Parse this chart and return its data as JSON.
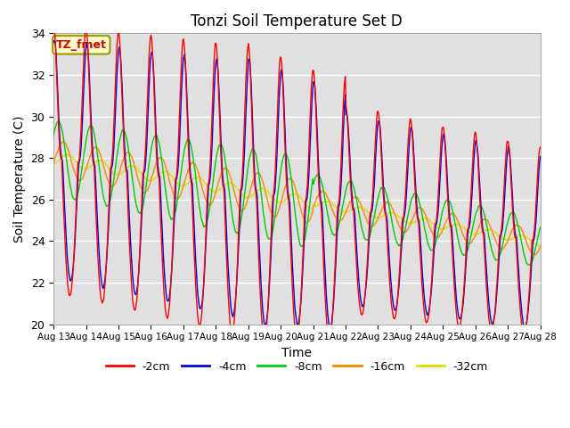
{
  "title": "Tonzi Soil Temperature Set D",
  "xlabel": "Time",
  "ylabel": "Soil Temperature (C)",
  "ylim": [
    20,
    34
  ],
  "xlim_days": [
    0,
    15
  ],
  "series_labels": [
    "-2cm",
    "-4cm",
    "-8cm",
    "-16cm",
    "-32cm"
  ],
  "series_colors": [
    "#ff0000",
    "#0000dd",
    "#00cc00",
    "#ff8800",
    "#dddd00"
  ],
  "annotation_text": "TZ_fmet",
  "annotation_color": "#cc0000",
  "annotation_bg": "#ffffcc",
  "annotation_border": "#999900",
  "background_color": "#e0e0e0",
  "grid_color": "#ffffff",
  "tick_labels": [
    "Aug 13",
    "Aug 14",
    "Aug 15",
    "Aug 16",
    "Aug 17",
    "Aug 18",
    "Aug 19",
    "Aug 20",
    "Aug 21",
    "Aug 22",
    "Aug 23",
    "Aug 24",
    "Aug 25",
    "Aug 26",
    "Aug 27",
    "Aug 28"
  ],
  "n_points": 720
}
